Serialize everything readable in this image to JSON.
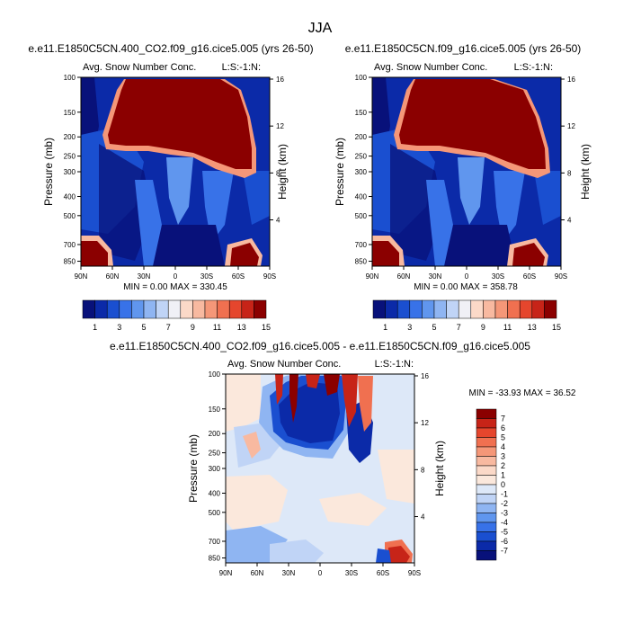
{
  "figure": {
    "title": "JJA"
  },
  "chart_data": [
    {
      "type": "heatmap",
      "id": "panel1",
      "title": "e.e11.E1850C5CN.400_CO2.f09_g16.cice5.005 (yrs 26-50)",
      "left_label": "Avg. Snow Number Conc.",
      "right_label": "L:S:-1:N:",
      "ylabel": "Pressure (mb)",
      "ylabel_right": "Height (km)",
      "x_ticks": [
        "90N",
        "60N",
        "30N",
        "0",
        "30S",
        "60S",
        "90S"
      ],
      "y_ticks": [
        "100",
        "150",
        "200",
        "250",
        "300",
        "400",
        "500",
        "700",
        "850"
      ],
      "y2_ticks": [
        "16",
        "12",
        "8",
        "4"
      ],
      "min": "0.00",
      "max": "330.45",
      "minmax_text": "MIN =   0.00  MAX = 330.45",
      "colorbar_labels": [
        "1",
        "3",
        "5",
        "7",
        "9",
        "11",
        "13",
        "15"
      ]
    },
    {
      "type": "heatmap",
      "id": "panel2",
      "title": "e.e11.E1850C5CN.f09_g16.cice5.005 (yrs 26-50)",
      "left_label": "Avg. Snow Number Conc.",
      "right_label": "L:S:-1:N:",
      "ylabel": "Pressure (mb)",
      "ylabel_right": "Height (km)",
      "x_ticks": [
        "90N",
        "60N",
        "30N",
        "0",
        "30S",
        "60S",
        "90S"
      ],
      "y_ticks": [
        "100",
        "150",
        "200",
        "250",
        "300",
        "400",
        "500",
        "700",
        "850"
      ],
      "y2_ticks": [
        "16",
        "12",
        "8",
        "4"
      ],
      "min": "0.00",
      "max": "358.78",
      "minmax_text": "MIN =   0.00  MAX = 358.78",
      "colorbar_labels": [
        "1",
        "3",
        "5",
        "7",
        "9",
        "11",
        "13",
        "15"
      ]
    },
    {
      "type": "heatmap",
      "id": "panel3",
      "title": "e.e11.E1850C5CN.400_CO2.f09_g16.cice5.005 - e.e11.E1850C5CN.f09_g16.cice5.005",
      "left_label": "Avg. Snow Number Conc.",
      "right_label": "L:S:-1:N:",
      "ylabel": "Pressure (mb)",
      "ylabel_right": "Height (km)",
      "x_ticks": [
        "90N",
        "60N",
        "30N",
        "0",
        "30S",
        "60S",
        "90S"
      ],
      "y_ticks": [
        "100",
        "150",
        "200",
        "250",
        "300",
        "400",
        "500",
        "700",
        "850"
      ],
      "y2_ticks": [
        "16",
        "12",
        "8",
        "4"
      ],
      "min": "-33.93",
      "max": "36.52",
      "minmax_text": "MIN = -33.93  MAX =  36.52",
      "colorbar_labels": [
        "7",
        "6",
        "5",
        "4",
        "3",
        "2",
        "1",
        "0",
        "-1",
        "-2",
        "-3",
        "-4",
        "-5",
        "-6",
        "-7"
      ]
    }
  ],
  "colors": {
    "abs_palette": [
      "#08117a",
      "#0b2aa8",
      "#1a4fd0",
      "#3872e8",
      "#6096ee",
      "#8fb5f2",
      "#c0d4f6",
      "#f0f0f6",
      "#fbd9c8",
      "#f8b9a0",
      "#f59778",
      "#f07050",
      "#e5462d",
      "#c72418",
      "#8b0000"
    ],
    "diff_palette": [
      "#8b0000",
      "#c72418",
      "#e5462d",
      "#f07050",
      "#f59778",
      "#f8b9a0",
      "#fbd9c8",
      "#fbe8dc",
      "#dde8f8",
      "#c0d4f6",
      "#8fb5f2",
      "#6096ee",
      "#3872e8",
      "#1a4fd0",
      "#0b2aa8",
      "#08117a"
    ]
  }
}
